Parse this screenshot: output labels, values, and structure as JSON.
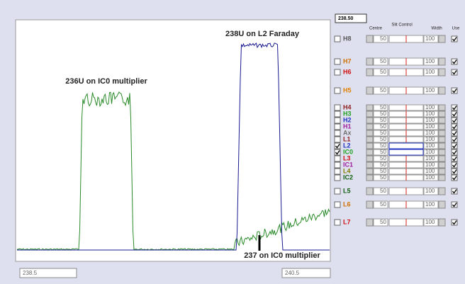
{
  "header": {
    "mass": "238.50",
    "columns": [
      "Centre",
      "Slit Control",
      "Width",
      "Use"
    ]
  },
  "annotations": [
    "238U on L2 Faraday",
    "236U on IC0 multiplier",
    "237 on IC0 multiplier"
  ],
  "axis": {
    "start": "238.5",
    "end": "240.5"
  },
  "channels": [
    {
      "label": "H8",
      "color": "#555555",
      "selected": false,
      "centre": "50",
      "width": "100",
      "use": true
    },
    {
      "label": "H7",
      "color": "#d07000",
      "selected": false,
      "centre": "50",
      "width": "100",
      "use": true
    },
    {
      "label": "H6",
      "color": "#d01010",
      "selected": false,
      "centre": "50",
      "width": "100",
      "use": true
    },
    {
      "label": "H5",
      "color": "#e08000",
      "selected": false,
      "centre": "50",
      "width": "100",
      "use": true
    },
    {
      "label": "H4",
      "color": "#902020",
      "selected": false,
      "centre": "50",
      "width": "100",
      "use": true
    },
    {
      "label": "H3",
      "color": "#20a020",
      "selected": false,
      "centre": "50",
      "width": "100",
      "use": true
    },
    {
      "label": "H2",
      "color": "#2030c0",
      "selected": false,
      "centre": "50",
      "width": "100",
      "use": true
    },
    {
      "label": "H1",
      "color": "#a020a0",
      "selected": false,
      "centre": "50",
      "width": "100",
      "use": true
    },
    {
      "label": "Ax",
      "color": "#707070",
      "selected": false,
      "centre": "50",
      "width": "100",
      "use": true
    },
    {
      "label": "L1",
      "color": "#902020",
      "selected": false,
      "centre": "50",
      "width": "100",
      "use": true
    },
    {
      "label": "L2",
      "color": "#2030c0",
      "selected": true,
      "centre": "50",
      "width": "100",
      "use": true
    },
    {
      "label": "IC0",
      "color": "#20a020",
      "selected": true,
      "centre": "50",
      "width": "100",
      "use": true
    },
    {
      "label": "L3",
      "color": "#d01010",
      "selected": false,
      "centre": "50",
      "width": "100",
      "use": true
    },
    {
      "label": "IC1",
      "color": "#a020a0",
      "selected": false,
      "centre": "50",
      "width": "100",
      "use": true
    },
    {
      "label": "L4",
      "color": "#808000",
      "selected": false,
      "centre": "50",
      "width": "100",
      "use": true
    },
    {
      "label": "IC2",
      "color": "#106010",
      "selected": false,
      "centre": "50",
      "width": "100",
      "use": true
    },
    {
      "label": "L5",
      "color": "#106010",
      "selected": false,
      "centre": "50",
      "width": "100",
      "use": true
    },
    {
      "label": "L6",
      "color": "#d07000",
      "selected": false,
      "centre": "50",
      "width": "100",
      "use": true
    },
    {
      "label": "L7",
      "color": "#d01010",
      "selected": false,
      "centre": "50",
      "width": "100",
      "use": true
    }
  ]
}
